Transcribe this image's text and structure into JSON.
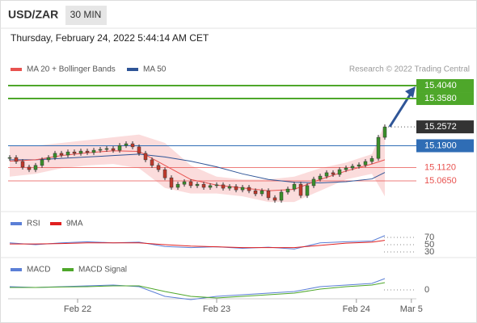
{
  "header": {
    "symbol": "USD/ZAR",
    "interval": "30 MIN",
    "timestamp": "Thursday, February 24, 2022 5:44:14 AM CET"
  },
  "chart_data": [
    {
      "type": "candlestick",
      "copyright": "Research © 2022 Trading Central",
      "x": [
        0,
        1,
        2,
        3,
        4,
        5,
        6,
        7,
        8,
        9,
        10,
        11,
        12,
        13,
        14,
        15,
        16,
        17,
        18,
        19,
        20,
        21,
        22,
        23,
        24,
        25,
        26,
        27,
        28,
        29,
        30,
        31,
        32,
        33,
        34,
        35,
        36,
        37,
        38,
        39,
        40,
        41,
        42,
        43,
        44,
        45,
        46,
        47,
        48,
        49,
        50,
        51,
        52,
        53,
        54,
        55,
        56,
        57,
        58
      ],
      "close": [
        15.148,
        15.134,
        15.114,
        15.105,
        15.12,
        15.14,
        15.148,
        15.163,
        15.157,
        15.168,
        15.163,
        15.171,
        15.166,
        15.174,
        15.177,
        15.18,
        15.174,
        15.191,
        15.197,
        15.186,
        15.163,
        15.14,
        15.12,
        15.105,
        15.076,
        15.042,
        15.053,
        15.062,
        15.048,
        15.053,
        15.042,
        15.048,
        15.051,
        15.039,
        15.045,
        15.033,
        15.042,
        15.03,
        15.019,
        15.03,
        15.005,
        14.996,
        15.025,
        15.036,
        15.053,
        15.013,
        15.048,
        15.071,
        15.082,
        15.094,
        15.088,
        15.105,
        15.111,
        15.117,
        15.122,
        15.134,
        15.145,
        15.22,
        15.257
      ],
      "xlim": [
        -0.25,
        62.875
      ],
      "ylim": [
        14.9616,
        15.4356
      ],
      "xticks": [
        {
          "value": 10.5,
          "label": "Feb 22"
        },
        {
          "value": 32,
          "label": "Feb 23"
        },
        {
          "value": 53.6,
          "label": "Feb 24"
        },
        {
          "value": 62.1,
          "label": "Mar 5"
        }
      ],
      "series": [
        {
          "name": "MA 20 + Bollinger Bands",
          "color": "#e8524f",
          "band_color": "#fbdcdc",
          "x": [
            0,
            4,
            8,
            12,
            16,
            20,
            24,
            28,
            32,
            36,
            40,
            44,
            48,
            52,
            56,
            58
          ],
          "values": [
            15.135,
            15.14,
            15.155,
            15.165,
            15.172,
            15.17,
            15.12,
            15.07,
            15.05,
            15.04,
            15.03,
            15.035,
            15.07,
            15.1,
            15.125,
            15.14
          ],
          "upper": [
            15.19,
            15.19,
            15.2,
            15.21,
            15.22,
            15.23,
            15.2,
            15.12,
            15.08,
            15.07,
            15.07,
            15.08,
            15.11,
            15.13,
            15.16,
            15.27
          ],
          "lower": [
            15.08,
            15.09,
            15.11,
            15.12,
            15.125,
            15.11,
            15.04,
            15.02,
            15.02,
            15.01,
            14.99,
            14.99,
            15.03,
            15.07,
            15.09,
            15.01
          ]
        },
        {
          "name": "MA 50",
          "color": "#2f5597",
          "x": [
            0,
            4,
            8,
            12,
            16,
            20,
            24,
            28,
            32,
            36,
            40,
            44,
            48,
            52,
            56,
            58
          ],
          "values": [
            15.14,
            15.14,
            15.145,
            15.15,
            15.155,
            15.16,
            15.15,
            15.135,
            15.115,
            15.09,
            15.07,
            15.06,
            15.058,
            15.062,
            15.072,
            15.095
          ]
        }
      ],
      "levels": [
        {
          "value": 15.404,
          "label": "15.4040",
          "color": "#4ea72a",
          "style": "box"
        },
        {
          "value": 15.358,
          "label": "15.3580",
          "color": "#4ea72a",
          "style": "box"
        },
        {
          "value": 15.2572,
          "color": "#333333",
          "style": "last"
        },
        {
          "value": 15.19,
          "label": "15.1900",
          "color": "#2f6db5",
          "style": "box"
        },
        {
          "value": 15.112,
          "label": "15.1120",
          "color": "#e8524f",
          "style": "text"
        },
        {
          "value": 15.065,
          "label": "15.0650",
          "color": "#e8524f",
          "style": "text"
        }
      ]
    },
    {
      "type": "line",
      "ylim": [
        21,
        90
      ],
      "yticks": [
        30,
        50,
        70
      ],
      "series": [
        {
          "name": "RSI",
          "color": "#5b7fd6",
          "x": [
            0,
            4,
            8,
            12,
            16,
            20,
            24,
            28,
            32,
            36,
            40,
            44,
            48,
            52,
            56,
            58
          ],
          "values": [
            55,
            50,
            55,
            58,
            55,
            57,
            45,
            42,
            44,
            40,
            43,
            38,
            55,
            58,
            60,
            75
          ]
        },
        {
          "name": "9MA",
          "color": "#e02020",
          "x": [
            0,
            4,
            8,
            12,
            16,
            20,
            24,
            28,
            32,
            36,
            40,
            44,
            48,
            52,
            56,
            58
          ],
          "values": [
            52,
            52,
            53,
            55,
            55,
            55,
            50,
            46,
            44,
            42,
            42,
            42,
            48,
            54,
            57,
            62
          ]
        }
      ]
    },
    {
      "type": "line",
      "ylim": [
        -0.008,
        0.018
      ],
      "yticks": [
        0
      ],
      "series": [
        {
          "name": "MACD",
          "color": "#5b7fd6",
          "x": [
            0,
            4,
            8,
            12,
            16,
            20,
            24,
            28,
            32,
            36,
            40,
            44,
            48,
            52,
            56,
            58
          ],
          "values": [
            0.002,
            0.0015,
            0.002,
            0.0025,
            0.003,
            0.002,
            -0.004,
            -0.006,
            -0.004,
            -0.003,
            -0.002,
            -0.001,
            0.002,
            0.003,
            0.004,
            0.007
          ]
        },
        {
          "name": "MACD Signal",
          "color": "#4ea72a",
          "x": [
            0,
            4,
            8,
            12,
            16,
            20,
            24,
            28,
            32,
            36,
            40,
            44,
            48,
            52,
            56,
            58
          ],
          "values": [
            0.0015,
            0.0015,
            0.0018,
            0.002,
            0.0025,
            0.0025,
            -0.001,
            -0.004,
            -0.005,
            -0.004,
            -0.003,
            -0.002,
            0.0005,
            0.002,
            0.003,
            0.0045
          ]
        }
      ]
    }
  ]
}
